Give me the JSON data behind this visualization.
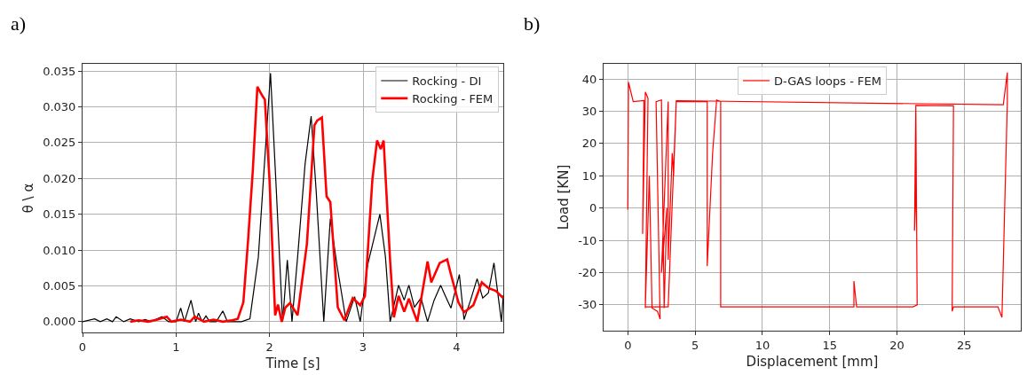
{
  "chart_data": [
    {
      "type": "line",
      "annotations": [
        "a)"
      ],
      "xlabel": "Time [s]",
      "ylabel": "θ \\ α",
      "xlim": [
        0,
        4.5
      ],
      "xticks": [
        0,
        1,
        2,
        3,
        4
      ],
      "ylim": [
        -0.0015,
        0.036
      ],
      "yticks": [
        {
          "value": 0,
          "label": "0.000"
        },
        0.005,
        {
          "value": 0.01,
          "label": "0.010"
        },
        0.015,
        {
          "value": 0.02,
          "label": "0.020"
        },
        0.025,
        {
          "value": 0.03,
          "label": "0.030"
        },
        0.035
      ],
      "grid": true,
      "legend": "top right",
      "series": [
        {
          "name": "Rocking - DI",
          "color": "#000000",
          "x": [
            0,
            0.13,
            0.19,
            0.26,
            0.32,
            0.36,
            0.44,
            0.51,
            0.6,
            0.67,
            0.73,
            0.85,
            0.92,
            1.0,
            1.05,
            1.09,
            1.16,
            1.21,
            1.24,
            1.28,
            1.32,
            1.36,
            1.43,
            1.5,
            1.55,
            1.7,
            1.79,
            1.88,
            1.94,
            2.01,
            2.07,
            2.14,
            2.19,
            2.24,
            2.3,
            2.38,
            2.445,
            2.5,
            2.58,
            2.65,
            2.72,
            2.82,
            2.91,
            2.97,
            3.05,
            3.18,
            3.24,
            3.29,
            3.38,
            3.44,
            3.49,
            3.55,
            3.62,
            3.69,
            3.76,
            3.83,
            3.88,
            3.94,
            4.03,
            4.08,
            4.15,
            4.22,
            4.28,
            4.34,
            4.4,
            4.48,
            4.5
          ],
          "values": [
            0,
            0.0004,
            0,
            0.0004,
            0,
            0.0007,
            0,
            0.0004,
            0,
            0.0003,
            0,
            0.0007,
            0,
            0,
            0.0019,
            0,
            0.003,
            0,
            0.0012,
            0,
            0.0008,
            0,
            0,
            0.0015,
            0,
            0,
            0.0004,
            0.009,
            0.021,
            0.0347,
            0.019,
            0,
            0.0086,
            0,
            0.009,
            0.022,
            0.0287,
            0.018,
            0,
            0.0144,
            0.008,
            0,
            0.0035,
            0,
            0.008,
            0.015,
            0.009,
            0,
            0.0051,
            0.003,
            0.0051,
            0.002,
            0.0033,
            0,
            0.003,
            0.0051,
            0.0036,
            0.0019,
            0.0066,
            0.0003,
            0.003,
            0.006,
            0.0033,
            0.004,
            0.0082,
            0,
            0.0037
          ]
        },
        {
          "name": "Rocking - FEM",
          "color": "#ff0000",
          "x": [
            0.51,
            0.6,
            0.7,
            0.8,
            0.9,
            0.95,
            1.05,
            1.15,
            1.2,
            1.3,
            1.4,
            1.5,
            1.6,
            1.66,
            1.72,
            1.77,
            1.82,
            1.87,
            1.92,
            1.95,
            2.0,
            2.06,
            2.09,
            2.13,
            2.17,
            2.22,
            2.3,
            2.4,
            2.48,
            2.51,
            2.56,
            2.61,
            2.65,
            2.73,
            2.8,
            2.89,
            2.97,
            3.02,
            3.1,
            3.15,
            3.19,
            3.22,
            3.29,
            3.33,
            3.38,
            3.44,
            3.49,
            3.58,
            3.69,
            3.73,
            3.78,
            3.82,
            3.9,
            3.94,
            4.02,
            4.08,
            4.18,
            4.27,
            4.34,
            4.42,
            4.5
          ],
          "values": [
            0,
            0.0002,
            0,
            0.0003,
            0.0007,
            0,
            0.0003,
            0,
            0.0007,
            0,
            0.0003,
            0,
            0.0002,
            0.0004,
            0.0027,
            0.0113,
            0.0209,
            0.0328,
            0.0316,
            0.031,
            0.0197,
            0.0009,
            0.0024,
            0,
            0.002,
            0.0026,
            0.0009,
            0.0109,
            0.0274,
            0.0281,
            0.0285,
            0.0175,
            0.0167,
            0.002,
            0.0002,
            0.0033,
            0.0023,
            0.0036,
            0.0199,
            0.0253,
            0.0241,
            0.0253,
            0.0084,
            0.0006,
            0.0036,
            0.0014,
            0.0032,
            0,
            0.0084,
            0.0055,
            0.007,
            0.0082,
            0.0087,
            0.0066,
            0.0027,
            0.0013,
            0.0023,
            0.0055,
            0.0047,
            0.0043,
            0.0033
          ]
        }
      ]
    },
    {
      "type": "line",
      "annotations": [
        "b)"
      ],
      "xlabel": "Displacement [mm]",
      "ylabel": "Load [KN]",
      "xlim": [
        -1.8,
        29.2
      ],
      "xticks": [
        0,
        5,
        10,
        15,
        20,
        25
      ],
      "ylim": [
        -38,
        44.7
      ],
      "yticks": [
        -30,
        -20,
        -10,
        0,
        10,
        20,
        30,
        40
      ],
      "grid": true,
      "legend": "top",
      "series": [
        {
          "name": "D-GAS loops - FEM",
          "color": "#ff0000",
          "x": [
            0,
            0.05,
            0.4,
            1.2,
            1.1,
            1.3,
            1.5,
            1.3,
            1.6,
            1.8,
            2.2,
            2.4,
            2.1,
            2.5,
            2.7,
            2.9,
            2.5,
            3.0,
            3.0,
            3.3,
            3.4,
            3.6,
            5.9,
            5.9,
            6.3,
            6.6,
            6.9,
            6.9,
            16.8,
            16.8,
            17.0,
            21.2,
            21.5,
            21.4,
            21.3,
            21.4,
            21.4,
            24.2,
            24.1,
            24.2,
            27.5,
            27.8,
            28.2,
            28.2,
            27.9,
            3.6,
            3.0,
            1.3
          ],
          "values": [
            -0.5,
            39,
            33,
            33.3,
            -8,
            36,
            34,
            -31,
            10,
            -31,
            -32,
            -34.4,
            33,
            33.5,
            -31,
            0,
            -20,
            33,
            -16,
            17,
            10,
            33,
            33,
            -18,
            17,
            33.5,
            33,
            -30.6,
            -30.6,
            -22.6,
            -30.6,
            -30.6,
            -30,
            31.8,
            -7,
            3,
            31.8,
            31.7,
            -32,
            -30.6,
            -30.6,
            -33.9,
            33,
            42,
            32,
            33.3,
            -30.6,
            -30.6
          ]
        }
      ]
    }
  ]
}
